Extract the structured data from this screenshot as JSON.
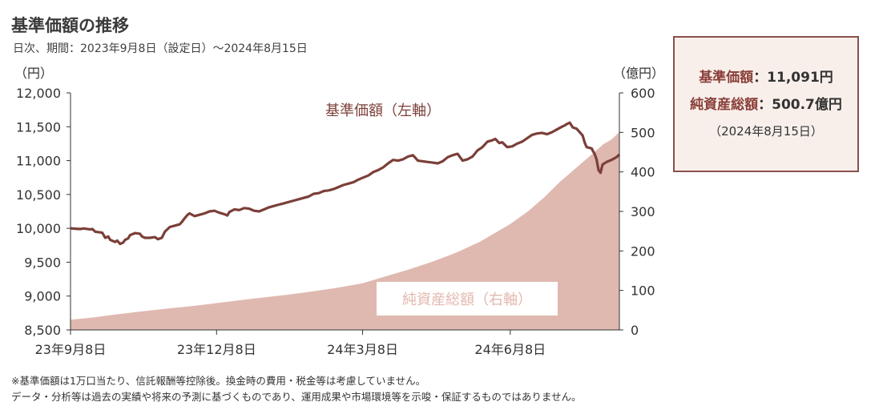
{
  "header": {
    "title": "基準価額の推移",
    "subtitle": "日次、期間：2023年9月8日（設定日）～2024年8月15日"
  },
  "info_box": {
    "nav_label": "基準価額",
    "nav_value": "：11,091円",
    "net_assets_label": "純資産総額",
    "net_assets_value": "：500.7億円",
    "date": "（2024年8月15日）"
  },
  "footnotes": {
    "line1": "※基準価額は1万口当たり、信託報酬等控除後。換金時の費用・税金等は考慮していません。",
    "line2": "データ・分析等は過去の実績や将来の予測に基づくものであり、運用成果や市場環境等を示唆・保証するものではありません。"
  },
  "chart_data": {
    "type": "line",
    "left_unit": "（円）",
    "right_unit": "（億円）",
    "x_tick_labels": [
      "23年9月8日",
      "23年12月8日",
      "24年3月8日",
      "24年6月8日"
    ],
    "x_tick_days": [
      0,
      91,
      182,
      274
    ],
    "x_range_days": [
      0,
      342
    ],
    "y_left_range": [
      8500,
      12000
    ],
    "y_left_ticks": [
      "8,500",
      "9,000",
      "9,500",
      "10,000",
      "10,500",
      "11,000",
      "11,500",
      "12,000"
    ],
    "y_right_range": [
      0,
      600
    ],
    "y_right_ticks": [
      "0",
      "100",
      "200",
      "300",
      "400",
      "500",
      "600"
    ],
    "series": [
      {
        "name": "基準価額（左軸）",
        "axis": "left",
        "kind": "line",
        "color": "#7b3f38",
        "points": [
          [
            0,
            10000
          ],
          [
            5,
            9995
          ],
          [
            10,
            9990
          ],
          [
            13,
            9998
          ],
          [
            20,
            9985
          ],
          [
            22,
            9990
          ],
          [
            25,
            9950
          ],
          [
            30,
            9940
          ],
          [
            32,
            9935
          ],
          [
            35,
            9860
          ],
          [
            38,
            9880
          ],
          [
            40,
            9830
          ],
          [
            45,
            9800
          ],
          [
            47,
            9820
          ],
          [
            50,
            9770
          ],
          [
            53,
            9790
          ],
          [
            55,
            9830
          ],
          [
            58,
            9850
          ],
          [
            60,
            9900
          ],
          [
            65,
            9930
          ],
          [
            70,
            9920
          ],
          [
            72,
            9880
          ],
          [
            75,
            9860
          ],
          [
            80,
            9860
          ],
          [
            85,
            9870
          ],
          [
            88,
            9840
          ],
          [
            92,
            9860
          ],
          [
            95,
            9950
          ],
          [
            100,
            10020
          ],
          [
            105,
            10040
          ],
          [
            110,
            10060
          ],
          [
            112,
            10090
          ],
          [
            115,
            10150
          ],
          [
            118,
            10200
          ],
          [
            120,
            10220
          ],
          [
            125,
            10180
          ],
          [
            130,
            10200
          ],
          [
            135,
            10220
          ],
          [
            140,
            10250
          ],
          [
            145,
            10260
          ],
          [
            150,
            10230
          ],
          [
            155,
            10210
          ],
          [
            158,
            10190
          ],
          [
            160,
            10240
          ],
          [
            165,
            10280
          ],
          [
            170,
            10270
          ],
          [
            175,
            10300
          ],
          [
            180,
            10290
          ],
          [
            185,
            10260
          ],
          [
            190,
            10250
          ],
          [
            195,
            10280
          ],
          [
            200,
            10310
          ],
          [
            205,
            10330
          ],
          [
            210,
            10350
          ],
          [
            215,
            10370
          ],
          [
            220,
            10390
          ],
          [
            225,
            10410
          ],
          [
            230,
            10430
          ],
          [
            235,
            10450
          ],
          [
            240,
            10470
          ],
          [
            245,
            10510
          ],
          [
            250,
            10520
          ],
          [
            255,
            10550
          ],
          [
            260,
            10560
          ],
          [
            265,
            10580
          ],
          [
            270,
            10610
          ],
          [
            275,
            10640
          ],
          [
            280,
            10660
          ],
          [
            285,
            10680
          ],
          [
            290,
            10720
          ],
          [
            295,
            10750
          ],
          [
            300,
            10780
          ],
          [
            305,
            10830
          ],
          [
            310,
            10860
          ],
          [
            315,
            10900
          ],
          [
            320,
            10960
          ],
          [
            325,
            11010
          ],
          [
            330,
            11000
          ],
          [
            335,
            11020
          ],
          [
            340,
            11060
          ],
          [
            345,
            11080
          ],
          [
            350,
            11000
          ],
          [
            355,
            10990
          ],
          [
            360,
            10980
          ],
          [
            365,
            10970
          ],
          [
            370,
            10960
          ],
          [
            375,
            10990
          ],
          [
            380,
            11050
          ],
          [
            385,
            11080
          ],
          [
            390,
            11100
          ],
          [
            395,
            11000
          ],
          [
            400,
            11020
          ],
          [
            405,
            11060
          ],
          [
            410,
            11150
          ],
          [
            415,
            11200
          ],
          [
            420,
            11280
          ],
          [
            425,
            11300
          ],
          [
            428,
            11320
          ],
          [
            432,
            11260
          ],
          [
            435,
            11270
          ],
          [
            440,
            11200
          ],
          [
            445,
            11210
          ],
          [
            450,
            11250
          ],
          [
            455,
            11280
          ],
          [
            460,
            11330
          ],
          [
            465,
            11380
          ],
          [
            470,
            11400
          ],
          [
            475,
            11410
          ],
          [
            480,
            11390
          ],
          [
            485,
            11420
          ],
          [
            490,
            11460
          ],
          [
            495,
            11500
          ],
          [
            498,
            11520
          ],
          [
            500,
            11540
          ],
          [
            503,
            11560
          ],
          [
            506,
            11490
          ],
          [
            510,
            11470
          ],
          [
            513,
            11420
          ],
          [
            516,
            11370
          ],
          [
            518,
            11270
          ],
          [
            520,
            11200
          ],
          [
            525,
            11180
          ],
          [
            528,
            11100
          ],
          [
            530,
            11020
          ],
          [
            532,
            10860
          ],
          [
            534,
            10820
          ],
          [
            536,
            10940
          ],
          [
            540,
            10980
          ],
          [
            545,
            11010
          ],
          [
            550,
            11050
          ],
          [
            553,
            11091
          ]
        ],
        "normalize_x_to": [
          0,
          342
        ]
      },
      {
        "name": "純資産総額（右軸）",
        "axis": "right",
        "kind": "area",
        "color": "#dfb9b0",
        "points": [
          [
            0,
            26
          ],
          [
            15,
            32
          ],
          [
            30,
            40
          ],
          [
            45,
            47
          ],
          [
            60,
            54
          ],
          [
            75,
            60
          ],
          [
            91,
            68
          ],
          [
            105,
            75
          ],
          [
            120,
            82
          ],
          [
            135,
            89
          ],
          [
            150,
            97
          ],
          [
            165,
            106
          ],
          [
            182,
            118
          ],
          [
            195,
            134
          ],
          [
            210,
            152
          ],
          [
            225,
            172
          ],
          [
            240,
            195
          ],
          [
            255,
            223
          ],
          [
            274,
            268
          ],
          [
            285,
            300
          ],
          [
            295,
            335
          ],
          [
            305,
            375
          ],
          [
            315,
            410
          ],
          [
            325,
            445
          ],
          [
            332,
            470
          ],
          [
            337,
            482
          ],
          [
            342,
            500.7
          ]
        ]
      }
    ],
    "annotations": {
      "nav_series_label": "基準価額（左軸）",
      "assets_series_label": "純資産総額（右軸）"
    },
    "grid": false
  }
}
